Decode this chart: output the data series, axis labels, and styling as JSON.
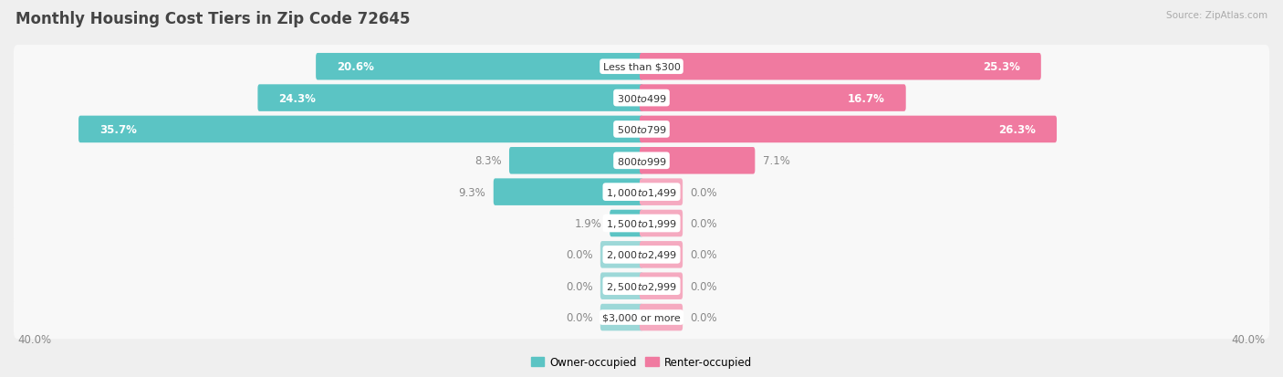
{
  "title": "Monthly Housing Cost Tiers in Zip Code 72645",
  "source": "Source: ZipAtlas.com",
  "categories": [
    "Less than $300",
    "$300 to $499",
    "$500 to $799",
    "$800 to $999",
    "$1,000 to $1,499",
    "$1,500 to $1,999",
    "$2,000 to $2,499",
    "$2,500 to $2,999",
    "$3,000 or more"
  ],
  "owner_values": [
    20.6,
    24.3,
    35.7,
    8.3,
    9.3,
    1.9,
    0.0,
    0.0,
    0.0
  ],
  "renter_values": [
    25.3,
    16.7,
    26.3,
    7.1,
    0.0,
    0.0,
    0.0,
    0.0,
    0.0
  ],
  "owner_color": "#5bc4c4",
  "renter_color": "#f07aa0",
  "stub_owner_color": "#9dd8d8",
  "stub_renter_color": "#f5aac0",
  "axis_max": 40.0,
  "bg_color": "#efefef",
  "row_bg_color": "#f8f8f8",
  "title_color": "#444444",
  "inside_label_color": "#ffffff",
  "outside_label_color": "#888888",
  "bar_height": 0.62,
  "stub_size": 2.5,
  "inside_threshold": 12.0,
  "label_fontsize": 8.5,
  "cat_fontsize": 8.0
}
